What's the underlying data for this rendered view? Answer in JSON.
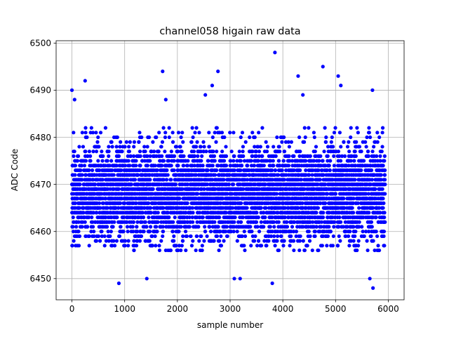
{
  "chart_data": {
    "type": "scatter",
    "title": "channel058 higain raw data",
    "xlabel": "sample number",
    "ylabel": "ADC Code",
    "xlim": [
      -300,
      6300
    ],
    "ylim": [
      6445.5,
      6500.5
    ],
    "xticks": [
      0,
      1000,
      2000,
      3000,
      4000,
      5000,
      6000
    ],
    "yticks": [
      6450,
      6460,
      6470,
      6480,
      6490,
      6500
    ],
    "grid": true,
    "color": "#0000ff",
    "n_samples": 5940,
    "value_range": [
      6448,
      6498
    ],
    "typical_range": [
      6456,
      6482
    ],
    "center_value": 6468,
    "outliers": [
      {
        "x": 0,
        "y": 6490
      },
      {
        "x": 50,
        "y": 6488
      },
      {
        "x": 250,
        "y": 6492
      },
      {
        "x": 890,
        "y": 6449
      },
      {
        "x": 1420,
        "y": 6450
      },
      {
        "x": 1720,
        "y": 6494
      },
      {
        "x": 1780,
        "y": 6488
      },
      {
        "x": 2530,
        "y": 6489
      },
      {
        "x": 2660,
        "y": 6491
      },
      {
        "x": 2770,
        "y": 6494
      },
      {
        "x": 3080,
        "y": 6450
      },
      {
        "x": 3190,
        "y": 6450
      },
      {
        "x": 3800,
        "y": 6449
      },
      {
        "x": 3850,
        "y": 6498
      },
      {
        "x": 4290,
        "y": 6493
      },
      {
        "x": 4380,
        "y": 6489
      },
      {
        "x": 4760,
        "y": 6495
      },
      {
        "x": 5050,
        "y": 6493
      },
      {
        "x": 5100,
        "y": 6491
      },
      {
        "x": 5650,
        "y": 6450
      },
      {
        "x": 5700,
        "y": 6490
      },
      {
        "x": 5710,
        "y": 6448
      }
    ]
  }
}
